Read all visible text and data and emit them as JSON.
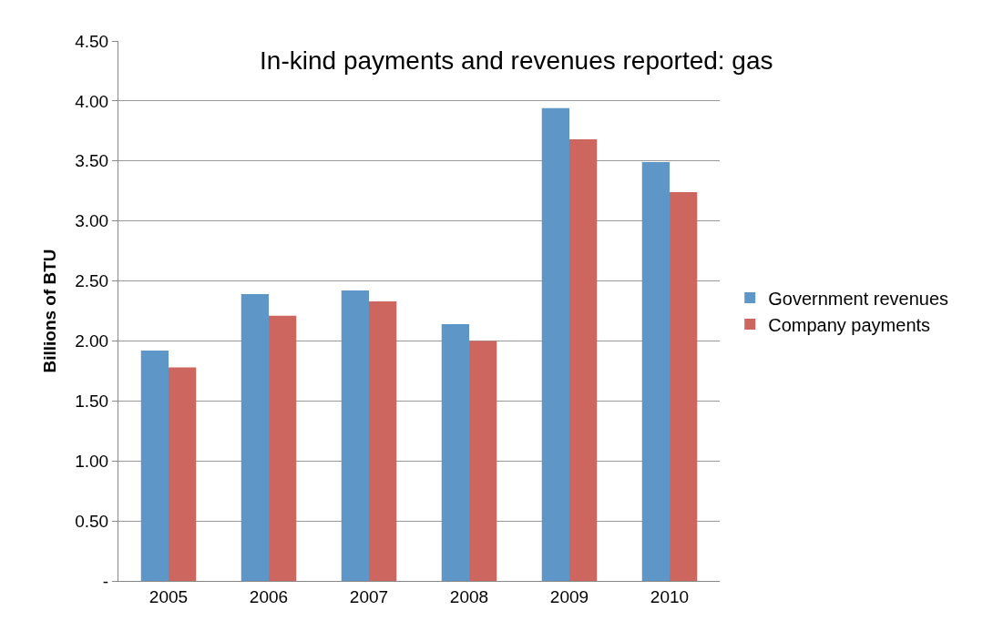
{
  "chart_data": {
    "type": "bar",
    "title": "In-kind payments and revenues reported: gas",
    "ylabel": "Billions of BTU",
    "categories": [
      "2005",
      "2006",
      "2007",
      "2008",
      "2009",
      "2010"
    ],
    "series": [
      {
        "name": "Government revenues",
        "color": "#5f96c8",
        "values": [
          1.92,
          2.39,
          2.42,
          2.14,
          3.94,
          3.49
        ]
      },
      {
        "name": "Company payments",
        "color": "#cc665e",
        "values": [
          1.78,
          2.21,
          2.33,
          2.0,
          3.68,
          3.24
        ]
      }
    ],
    "ylim": [
      0,
      4.5
    ],
    "yticks": [
      {
        "value": 0,
        "label": "-"
      },
      {
        "value": 0.5,
        "label": "0.50"
      },
      {
        "value": 1,
        "label": "1.00"
      },
      {
        "value": 1.5,
        "label": "1.50"
      },
      {
        "value": 2,
        "label": "2.00"
      },
      {
        "value": 2.5,
        "label": "2.50"
      },
      {
        "value": 3,
        "label": "3.00"
      },
      {
        "value": 3.5,
        "label": "3.50"
      },
      {
        "value": 4,
        "label": "4.00"
      },
      {
        "value": 4.5,
        "label": "4.50"
      }
    ],
    "grid": "y",
    "legend": "right"
  }
}
